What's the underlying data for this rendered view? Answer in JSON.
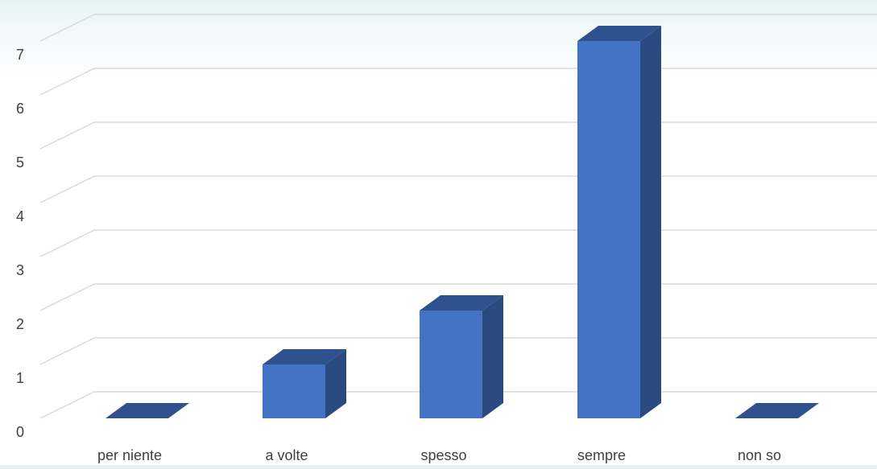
{
  "chart_data": {
    "type": "bar",
    "categories": [
      "per niente",
      "a volte",
      "spesso",
      "sempre",
      "non so"
    ],
    "values": [
      0,
      1,
      2,
      7,
      0
    ],
    "title": "",
    "xlabel": "",
    "ylabel": "",
    "ylim": [
      0,
      7
    ],
    "ytick_labels": [
      "0",
      "1",
      "2",
      "3",
      "4",
      "5",
      "6",
      "7"
    ],
    "grid": true,
    "style": "3d",
    "colors": {
      "bar_front": "#4472c4",
      "bar_top": "#2f528f",
      "bar_side": "#2a4a80",
      "gridline": "#d9d9d9",
      "tick_text": "#404040"
    }
  }
}
